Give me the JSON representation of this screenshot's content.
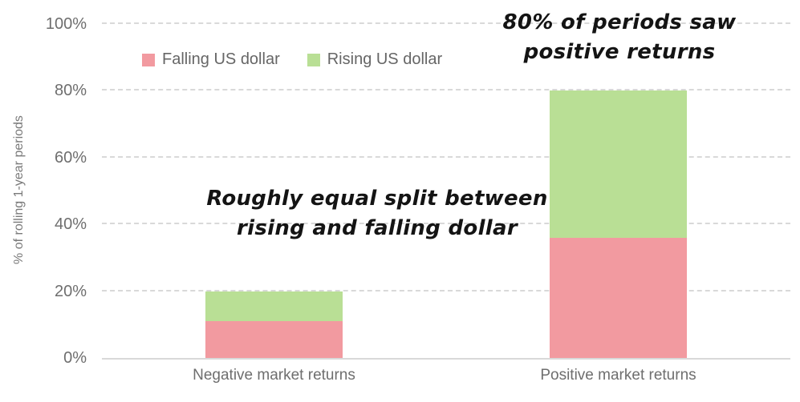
{
  "background_color": "#FFFFFF",
  "chart_data": {
    "type": "bar",
    "stacked": true,
    "categories": [
      "Negative market returns",
      "Positive market returns"
    ],
    "series": [
      {
        "name": "Falling US dollar",
        "color": "#F29AA0",
        "values": [
          11,
          36
        ]
      },
      {
        "name": "Rising US dollar",
        "color": "#B9DF95",
        "values": [
          9,
          44
        ]
      }
    ],
    "ylabel": "% of rolling 1-year periods",
    "xlabel": "",
    "ylim": [
      0,
      100
    ],
    "yticks": [
      0,
      20,
      40,
      60,
      80,
      100
    ],
    "ytick_labels": [
      "0%",
      "20%",
      "40%",
      "60%",
      "80%",
      "100%"
    ],
    "grid": "horizontal-dashed",
    "gridline_color": "#D9D9D9",
    "axis_line_color": "#D9D9D9",
    "tick_label_color": "#6E6E6E",
    "legend_position": "top",
    "annotations": [
      {
        "line1": "80% of periods saw",
        "line2": "positive returns"
      },
      {
        "line1": "Roughly equal split between",
        "line2": "rising and falling dollar"
      }
    ],
    "annotation_color": "#141414",
    "bar_width_fraction_of_plot": 0.2
  }
}
